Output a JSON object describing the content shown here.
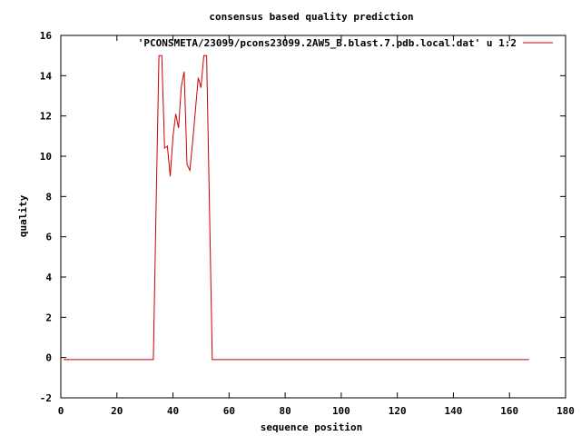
{
  "chart_data": {
    "type": "line",
    "title": "consensus based quality prediction",
    "xlabel": "sequence position",
    "ylabel": "quality",
    "xlim": [
      0,
      180
    ],
    "ylim": [
      -2,
      16
    ],
    "x_ticks": [
      0,
      20,
      40,
      60,
      80,
      100,
      120,
      140,
      160,
      180
    ],
    "y_ticks": [
      -2,
      0,
      2,
      4,
      6,
      8,
      10,
      12,
      14,
      16
    ],
    "grid": false,
    "legend_position": "top-right",
    "series": [
      {
        "name": "'PCONSMETA/23099/pcons23099.2AW5_B.blast.7.pdb.local.dat' u 1:2",
        "color": "#cc0000",
        "points": [
          [
            1,
            -0.1
          ],
          [
            33,
            -0.1
          ],
          [
            34,
            7.6
          ],
          [
            35,
            15
          ],
          [
            36,
            15
          ],
          [
            37,
            10.4
          ],
          [
            38,
            10.5
          ],
          [
            39,
            9.0
          ],
          [
            40,
            11.0
          ],
          [
            41,
            12.1
          ],
          [
            42,
            11.4
          ],
          [
            43,
            13.5
          ],
          [
            44,
            14.2
          ],
          [
            45,
            9.6
          ],
          [
            46,
            9.3
          ],
          [
            47,
            10.7
          ],
          [
            48,
            12.3
          ],
          [
            49,
            13.9
          ],
          [
            50,
            13.4
          ],
          [
            51,
            15
          ],
          [
            52,
            15
          ],
          [
            53,
            7.6
          ],
          [
            54,
            -0.1
          ],
          [
            167,
            -0.1
          ]
        ]
      }
    ]
  }
}
